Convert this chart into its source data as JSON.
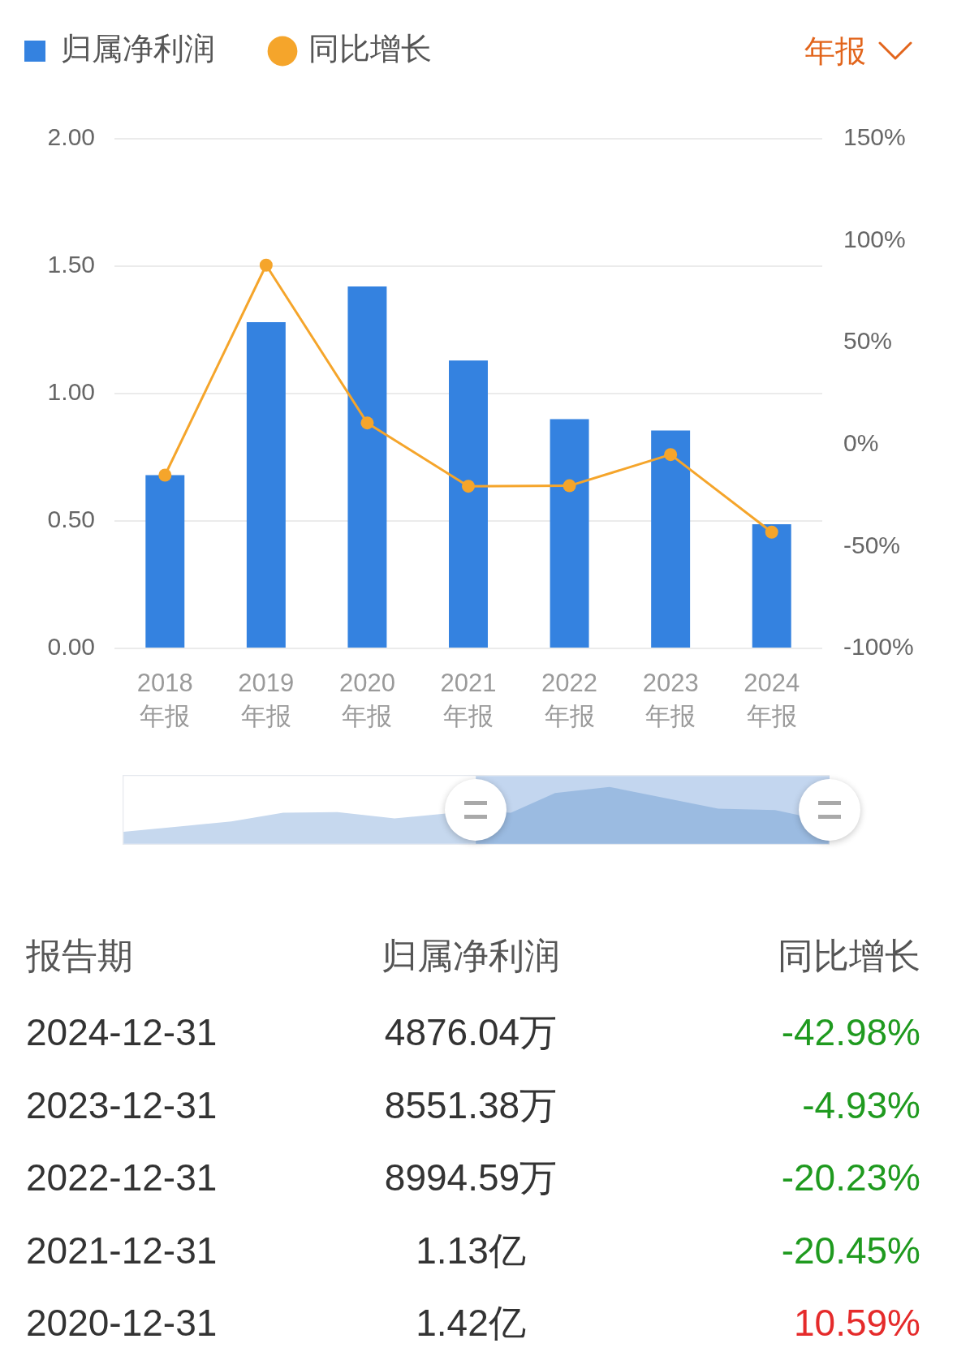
{
  "chart_data": {
    "type": "bar",
    "categories": [
      "2018\n年报",
      "2019\n年报",
      "2020\n年报",
      "2021\n年报",
      "2022\n年报",
      "2023\n年报",
      "2024\n年报"
    ],
    "series": [
      {
        "name": "归属净利润",
        "color": "#3482e0",
        "values": [
          0.68,
          1.28,
          1.42,
          1.13,
          0.899459,
          0.855138,
          0.487604
        ]
      },
      {
        "name": "同比增长",
        "type": "line",
        "axis": "y2",
        "color": "#f5a52b",
        "marker": "circle",
        "values": [
          -15,
          88,
          10.59,
          -20.45,
          -20.23,
          -4.93,
          -42.98
        ]
      }
    ],
    "ylim": [
      0,
      2
    ],
    "yticks": [
      {
        "value": 0,
        "label": "0.00"
      },
      {
        "value": 0.5,
        "label": "0.50"
      },
      {
        "value": 1,
        "label": "1.00"
      },
      {
        "value": 1.5,
        "label": "1.50"
      },
      {
        "value": 2,
        "label": "2.00"
      }
    ],
    "y2lim": [
      -100,
      150
    ],
    "y2ticks": [
      {
        "value": -100,
        "label": "-100%"
      },
      {
        "value": -50,
        "label": "-50%"
      },
      {
        "value": 0,
        "label": "0%"
      },
      {
        "value": 50,
        "label": "50%"
      },
      {
        "value": 100,
        "label": "100%"
      },
      {
        "value": 150,
        "label": "150%"
      }
    ],
    "grid": "y",
    "legend": "top left",
    "annotations": [
      "年报",
      "报告期",
      "2024-12-31",
      "4876.04万",
      "-42.98%",
      "2023-12-31",
      "8551.38万",
      "-4.93%",
      "2022-12-31",
      "8994.59万",
      "-20.23%",
      "2021-12-31",
      "1.13亿",
      "-20.45%",
      "2020-12-31",
      "1.42亿",
      "10.59%"
    ]
  }
}
